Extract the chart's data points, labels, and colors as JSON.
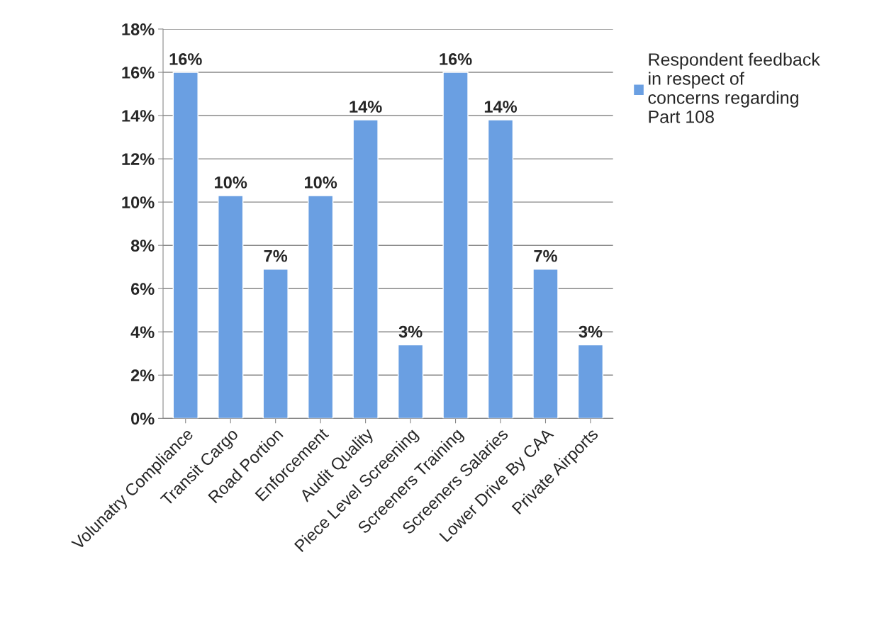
{
  "chart_data": {
    "type": "bar",
    "categories": [
      "Volunatry Compliance",
      "Transit Cargo",
      "Road Portion",
      "Enforcement",
      "Audit Quality",
      "Piece Level Screening",
      "Screeners Training",
      "Screeners Salaries",
      "Lower Drive By CAA",
      "Private Airports"
    ],
    "series": [
      {
        "name": "Respondent feedback in respect of concerns regarding Part 108",
        "color": "#6a9fe2",
        "values": [
          16.0,
          10.3,
          6.9,
          10.3,
          13.8,
          3.4,
          16.0,
          13.8,
          6.9,
          3.4
        ],
        "value_labels": [
          "16%",
          "10%",
          "7%",
          "10%",
          "14%",
          "3%",
          "16%",
          "14%",
          "7%",
          "3%"
        ]
      }
    ],
    "ylim": [
      0,
      18
    ],
    "yticks": [
      {
        "value": 0,
        "label": "0%"
      },
      {
        "value": 2,
        "label": "2%"
      },
      {
        "value": 4,
        "label": "4%"
      },
      {
        "value": 6,
        "label": "6%"
      },
      {
        "value": 8,
        "label": "8%"
      },
      {
        "value": 10,
        "label": "10%"
      },
      {
        "value": 12,
        "label": "12%"
      },
      {
        "value": 14,
        "label": "14%"
      },
      {
        "value": 16,
        "label": "16%"
      },
      {
        "value": 18,
        "label": "18%"
      }
    ],
    "grid": "y",
    "legend": "right"
  }
}
